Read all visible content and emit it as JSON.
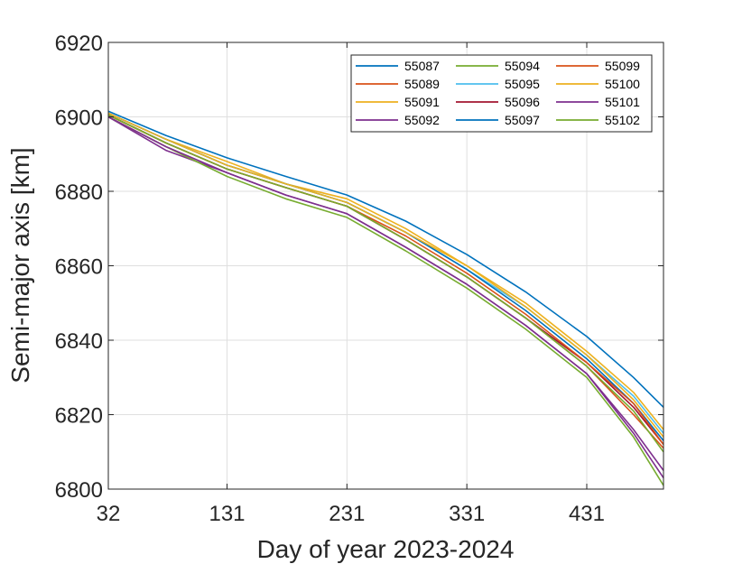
{
  "chart_data": {
    "type": "line",
    "title": "",
    "xlabel": "Day of year 2023-2024",
    "ylabel": "Semi-major axis [km]",
    "xlim": [
      32,
      495
    ],
    "ylim": [
      6800,
      6920
    ],
    "xticks": [
      32,
      131,
      231,
      331,
      431
    ],
    "yticks": [
      6800,
      6820,
      6840,
      6860,
      6880,
      6900,
      6920
    ],
    "grid": true,
    "legend_position": "top-right",
    "legend_columns": 3,
    "series": [
      {
        "name": "55087",
        "color": "#0072BD",
        "x": [
          32,
          80,
          131,
          180,
          231,
          280,
          331,
          380,
          431,
          470,
          495
        ],
        "y": [
          6901.5,
          6895,
          6889,
          6884,
          6879,
          6872,
          6863,
          6853,
          6841,
          6830,
          6822
        ]
      },
      {
        "name": "55089",
        "color": "#D95319",
        "x": [
          32,
          80,
          131,
          180,
          231,
          280,
          331,
          380,
          431,
          470,
          495
        ],
        "y": [
          6900.5,
          6893,
          6886,
          6881,
          6876,
          6867,
          6857,
          6846,
          6833,
          6820,
          6811
        ]
      },
      {
        "name": "55091",
        "color": "#EDB120",
        "x": [
          32,
          80,
          131,
          180,
          231,
          280,
          331,
          380,
          431,
          470,
          495
        ],
        "y": [
          6901,
          6894,
          6888,
          6882,
          6878,
          6870,
          6860,
          6850,
          6837,
          6826,
          6816
        ]
      },
      {
        "name": "55092",
        "color": "#7E2F8E",
        "x": [
          32,
          80,
          131,
          180,
          231,
          280,
          331,
          380,
          431,
          470,
          495
        ],
        "y": [
          6900,
          6891,
          6885,
          6879,
          6874,
          6865,
          6855,
          6844,
          6831,
          6815,
          6803
        ]
      },
      {
        "name": "55094",
        "color": "#77AC30",
        "x": [
          32,
          80,
          131,
          180,
          231,
          280,
          331,
          380,
          431,
          470,
          495
        ],
        "y": [
          6900,
          6892,
          6884,
          6878,
          6873,
          6864,
          6854,
          6843,
          6830,
          6814,
          6801
        ]
      },
      {
        "name": "55095",
        "color": "#4DBEEE",
        "x": [
          32,
          80,
          131,
          180,
          231,
          280,
          331,
          380,
          431,
          470,
          495
        ],
        "y": [
          6901,
          6894,
          6887,
          6882,
          6877,
          6869,
          6859,
          6849,
          6836,
          6825,
          6815
        ]
      },
      {
        "name": "55096",
        "color": "#A2142F",
        "x": [
          32,
          80,
          131,
          180,
          231,
          280,
          331,
          380,
          431,
          470,
          495
        ],
        "y": [
          6900.5,
          6893,
          6886,
          6881,
          6876,
          6867,
          6857,
          6846,
          6834,
          6822,
          6812
        ]
      },
      {
        "name": "55097",
        "color": "#0072BD",
        "x": [
          32,
          80,
          131,
          180,
          231,
          280,
          331,
          380,
          431,
          470,
          495
        ],
        "y": [
          6901,
          6894,
          6887,
          6882,
          6877,
          6869,
          6859,
          6848,
          6835,
          6823,
          6813
        ]
      },
      {
        "name": "55099",
        "color": "#D95319",
        "x": [
          32,
          80,
          131,
          180,
          231,
          280,
          331,
          380,
          431,
          470,
          495
        ],
        "y": [
          6900.5,
          6893,
          6886,
          6881,
          6876,
          6868,
          6858,
          6847,
          6834,
          6823,
          6812
        ]
      },
      {
        "name": "55100",
        "color": "#EDB120",
        "x": [
          32,
          80,
          131,
          180,
          231,
          280,
          331,
          380,
          431,
          470,
          495
        ],
        "y": [
          6901,
          6894,
          6887,
          6882,
          6877,
          6869,
          6860,
          6849,
          6836,
          6824,
          6814
        ]
      },
      {
        "name": "55101",
        "color": "#7E2F8E",
        "x": [
          32,
          80,
          131,
          180,
          231,
          280,
          331,
          380,
          431,
          470,
          495
        ],
        "y": [
          6900,
          6892,
          6885,
          6879,
          6874,
          6865,
          6855,
          6844,
          6831,
          6816,
          6805
        ]
      },
      {
        "name": "55102",
        "color": "#77AC30",
        "x": [
          32,
          80,
          131,
          180,
          231,
          280,
          331,
          380,
          431,
          470,
          495
        ],
        "y": [
          6900.5,
          6893,
          6886,
          6881,
          6876,
          6867,
          6857,
          6846,
          6833,
          6821,
          6810
        ]
      }
    ]
  }
}
